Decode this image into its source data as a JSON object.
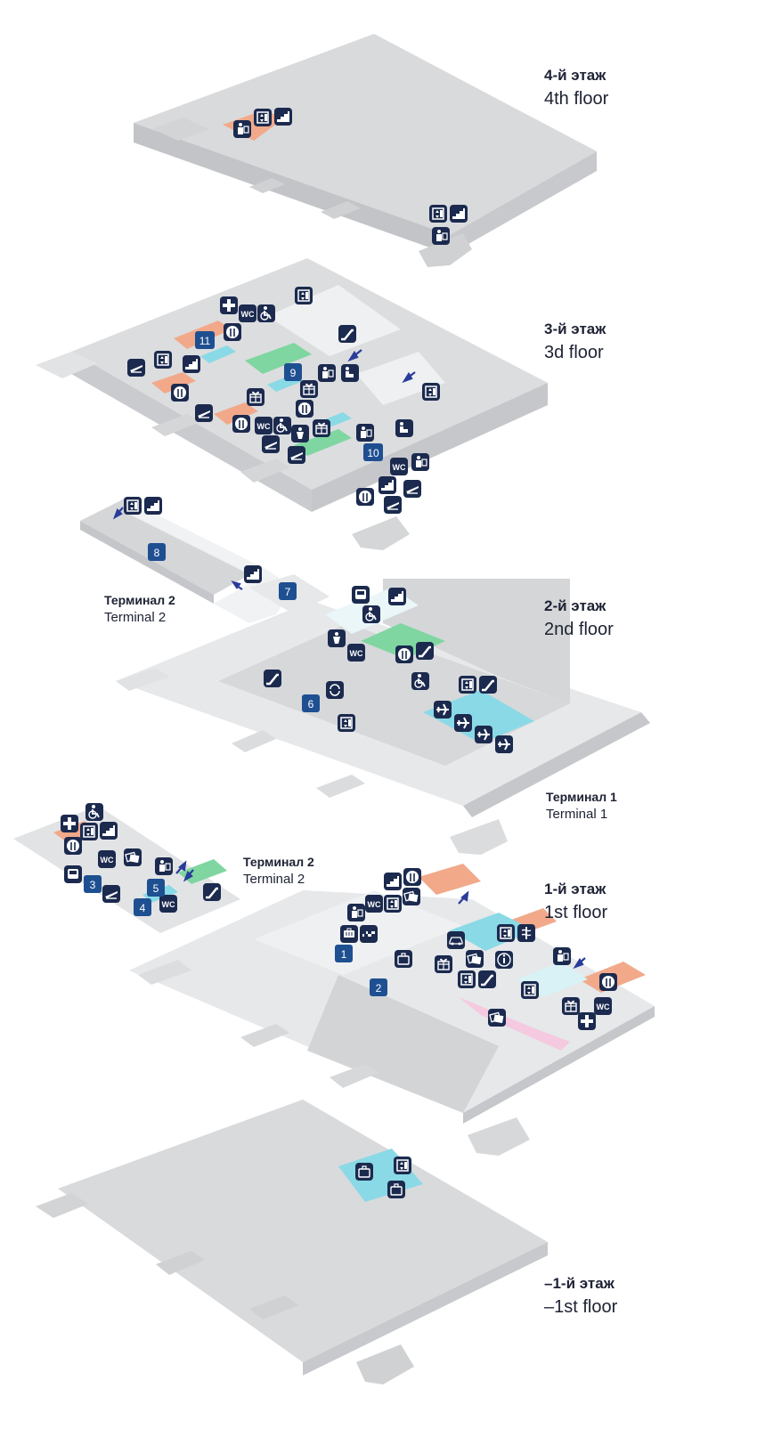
{
  "floors": {
    "f4": {
      "ru": "4-й этаж",
      "en": "4th floor"
    },
    "f3": {
      "ru": "3-й этаж",
      "en": "3d floor"
    },
    "f2": {
      "ru": "2-й этаж",
      "en": "2nd floor"
    },
    "f1": {
      "ru": "1-й этаж",
      "en": "1st floor"
    },
    "fm1": {
      "ru": "–1-й этаж",
      "en": "–1st floor"
    }
  },
  "terminals": {
    "t2_upper": {
      "ru": "Терминал 2",
      "en": "Terminal 2"
    },
    "t1": {
      "ru": "Терминал 1",
      "en": "Terminal 1"
    },
    "t2_lower": {
      "ru": "Терминал 2",
      "en": "Terminal 2"
    }
  },
  "colors": {
    "floor": "#d9dadc",
    "floor_light": "#eef0f2",
    "floor_dark": "#c7c9cc",
    "corridor": "#e4e6e8",
    "orange": "#f2a98a",
    "green": "#7fd6a0",
    "cyan": "#8ad9e6",
    "icon_bg": "#1b2a4e",
    "number_bg": "#1e4f91"
  },
  "icon_names": [
    "elevator-icon",
    "stairs-icon",
    "toilet-icon",
    "wheelchair-icon",
    "restaurant-icon",
    "first-aid-icon",
    "departures-icon",
    "gift-shop-icon",
    "lounge-icon",
    "passport-control-icon",
    "escalator-icon",
    "information-icon",
    "baggage-icon",
    "taxi-icon",
    "car-rental-icon",
    "atm-icon",
    "pharmacy-icon",
    "bus-icon",
    "arrow-icon"
  ],
  "zones": {
    "z1": "1",
    "z2": "2",
    "z3": "3",
    "z4": "4",
    "z5": "5",
    "z6": "6",
    "z7": "7",
    "z8": "8",
    "z9": "9",
    "z10": "10",
    "z11": "11"
  },
  "wc": "WC"
}
